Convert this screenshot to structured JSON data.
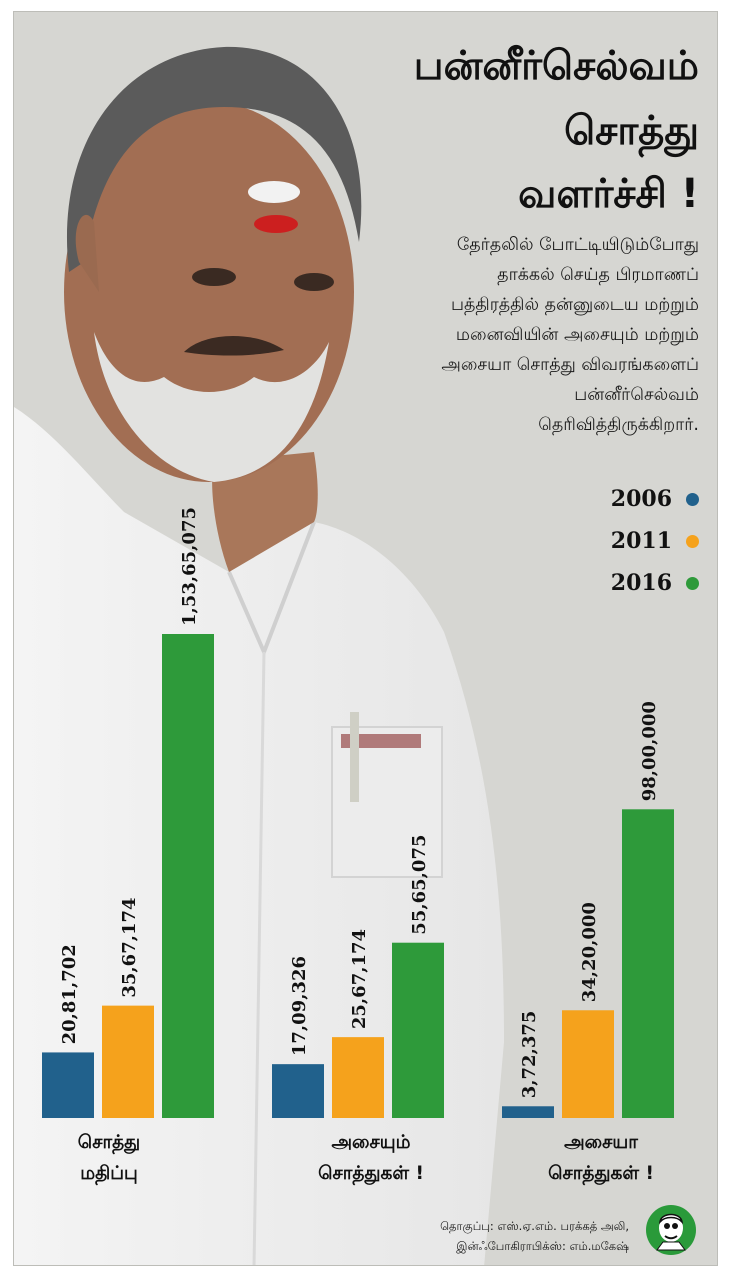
{
  "title": {
    "line1": "பன்னீர்செல்வம்",
    "line2": "சொத்து",
    "line3": "வளர்ச்சி !"
  },
  "subtitle": {
    "lines": [
      "தேர்தலில் போட்டியிடும்போது",
      "தாக்கல் செய்த பிரமாணப்",
      "பத்திரத்தில் தன்னுடைய மற்றும்",
      "மனைவியின் அசையும் மற்றும்",
      "அசையா சொத்து விவரங்களைப்",
      "பன்னீர்செல்வம்",
      "தெரிவித்திருக்கிறார்."
    ]
  },
  "legend": [
    {
      "label": "2006",
      "color": "#21618c"
    },
    {
      "label": "2011",
      "color": "#f5a21c"
    },
    {
      "label": "2016",
      "color": "#2e9a3a"
    }
  ],
  "chart_data": {
    "type": "bar",
    "title": "பன்னீர்செல்வம் சொத்து வளர்ச்சி !",
    "categories": [
      {
        "line1": "சொத்து",
        "line2": "மதிப்பு"
      },
      {
        "line1": "அசையும்",
        "line2": "சொத்துகள் !"
      },
      {
        "line1": "அசையா",
        "line2": "சொத்துகள் !"
      }
    ],
    "series": [
      {
        "name": "2006",
        "color": "#21618c",
        "values": [
          2081702,
          1709326,
          372375
        ],
        "labels": [
          "20,81,702",
          "17,09,326",
          "3,72,375"
        ]
      },
      {
        "name": "2011",
        "color": "#f5a21c",
        "values": [
          3567174,
          2567174,
          3420000
        ],
        "labels": [
          "35,67,174",
          "25,67,174",
          "34,20,000"
        ]
      },
      {
        "name": "2016",
        "color": "#2e9a3a",
        "values": [
          15365075,
          5565075,
          9800000
        ],
        "labels": [
          "1,53,65,075",
          "55,65,075",
          "98,00,000"
        ]
      }
    ],
    "grid": false,
    "legend_position": "right"
  },
  "credits": {
    "line1": "தொகுப்பு: எஸ்.ஏ.எம். பரக்கத் அலி,",
    "line2": "இன்ஃபோகிராபிக்ஸ்: எம்.மகேஷ்"
  }
}
